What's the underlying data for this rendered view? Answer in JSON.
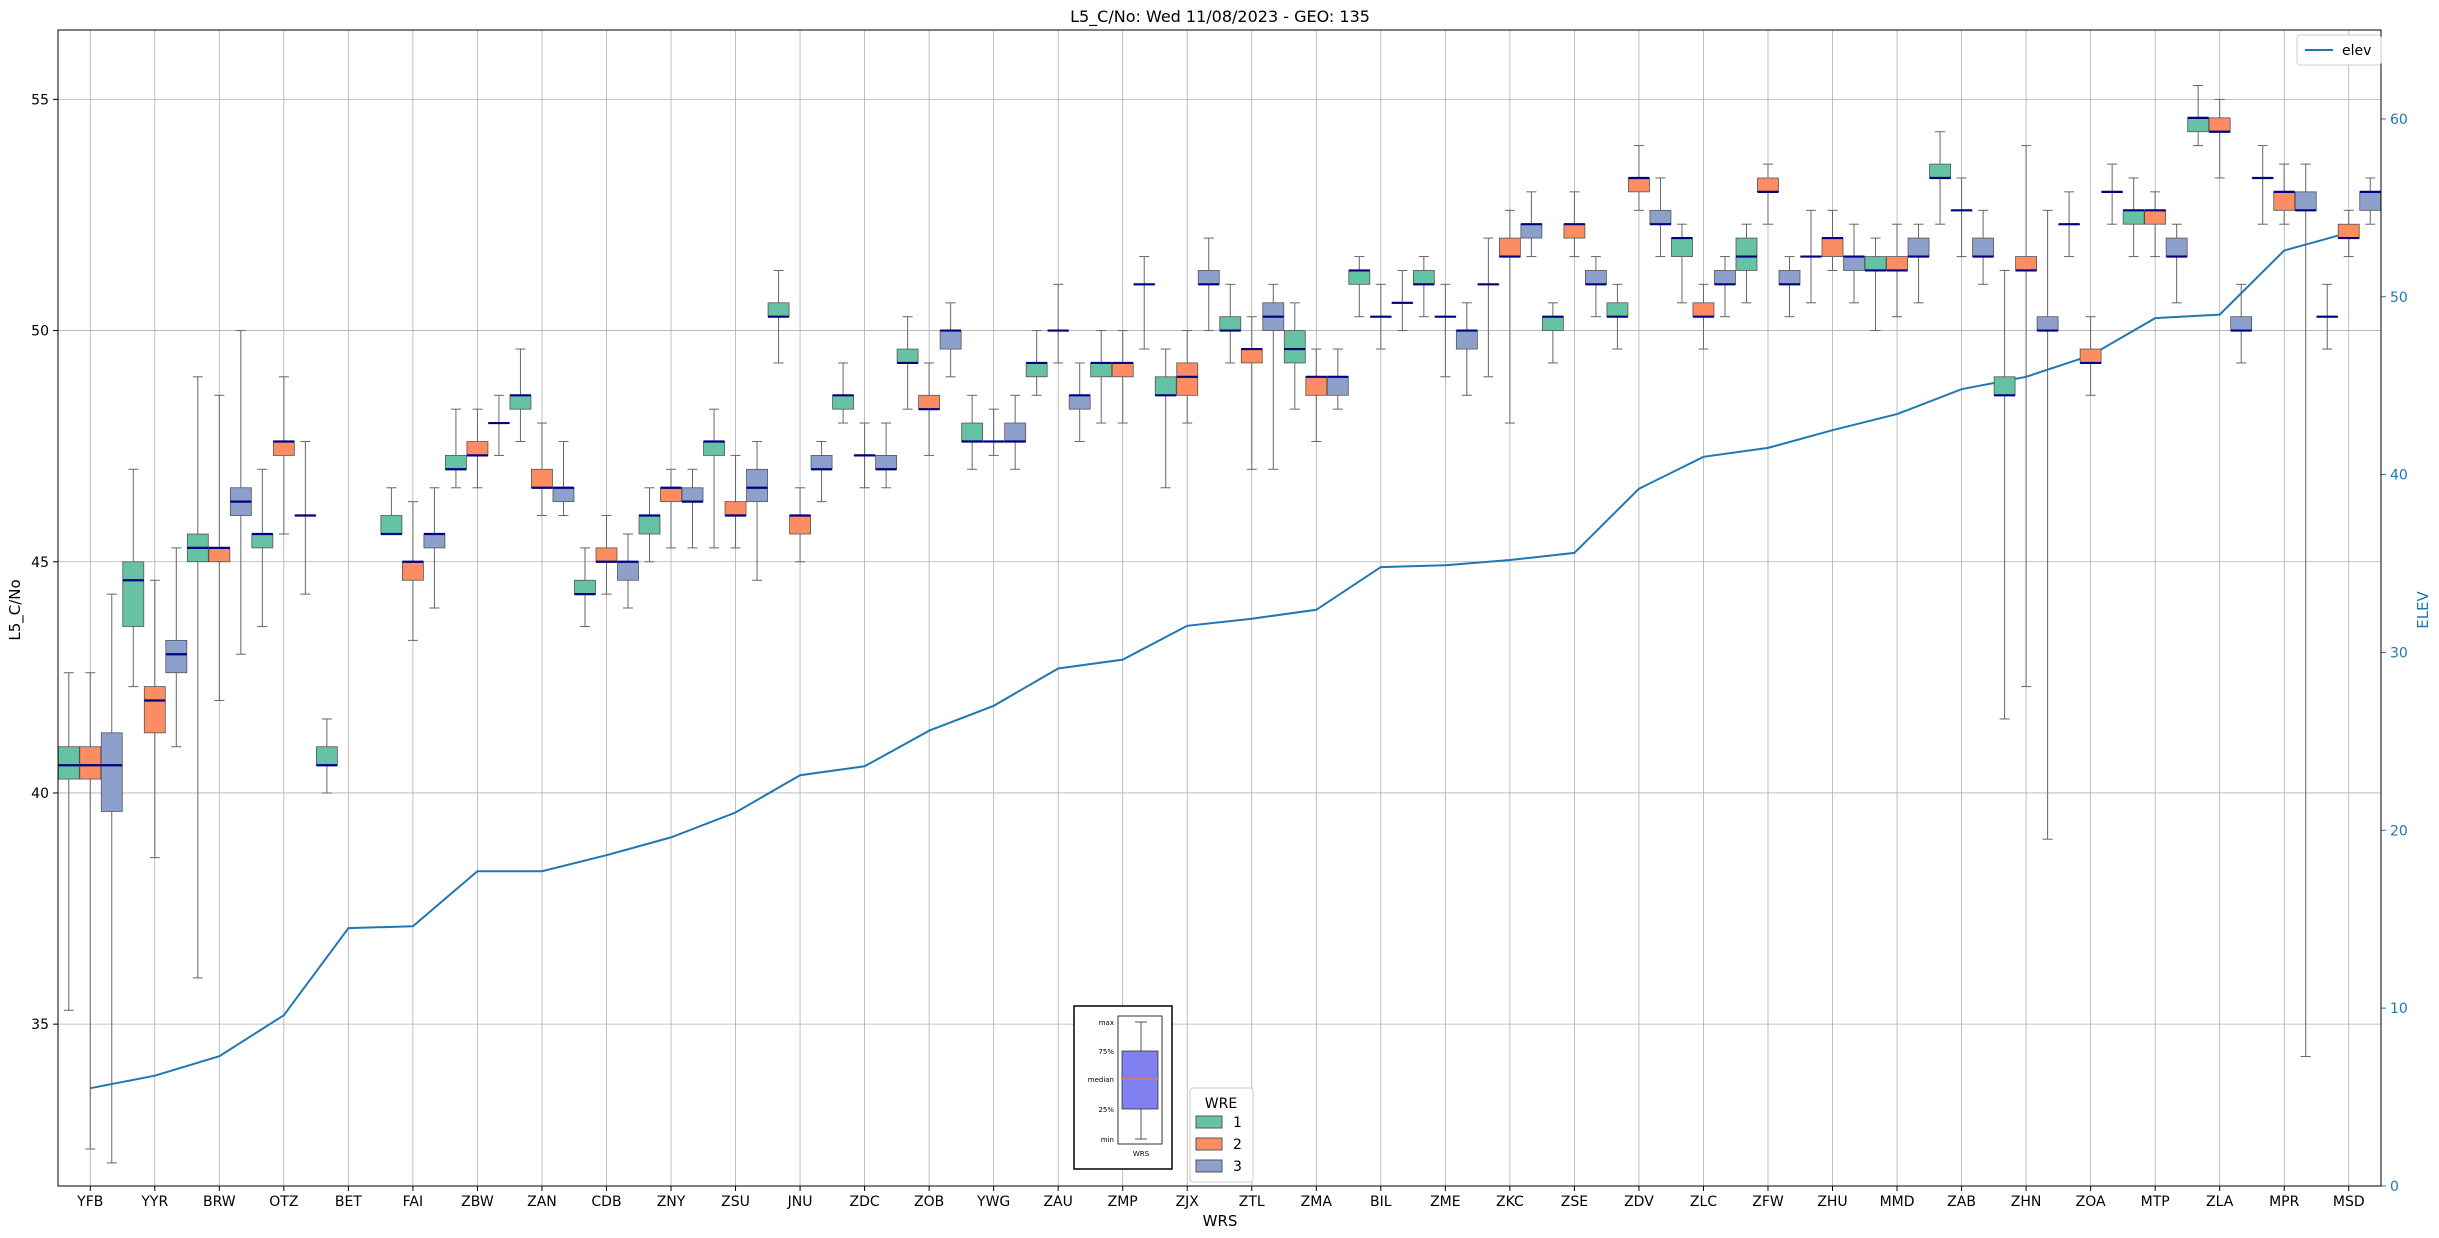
{
  "chart_data": {
    "type": "box",
    "title": "L5_C/No: Wed 11/08/2023 - GEO: 135",
    "xlabel": "WRS",
    "ylabel": "L5_C/No",
    "y2label": "ELEV",
    "ylim": [
      31.5,
      56.5
    ],
    "y2lim": [
      0,
      65
    ],
    "yticks": [
      35,
      40,
      45,
      50,
      55
    ],
    "y2ticks": [
      0,
      10,
      20,
      30,
      40,
      50,
      60
    ],
    "grid": true,
    "categories": [
      "YFB",
      "YYR",
      "BRW",
      "OTZ",
      "BET",
      "FAI",
      "ZBW",
      "ZAN",
      "CDB",
      "ZNY",
      "ZSU",
      "JNU",
      "ZDC",
      "ZOB",
      "YWG",
      "ZAU",
      "ZMP",
      "ZJX",
      "ZTL",
      "ZMA",
      "BIL",
      "ZME",
      "ZKC",
      "ZSE",
      "ZDV",
      "ZLC",
      "ZFW",
      "ZHU",
      "MMD",
      "ZAB",
      "ZHN",
      "ZOA",
      "MTP",
      "ZLA",
      "MPR",
      "MSD"
    ],
    "wre_legend": {
      "title": "WRE",
      "items": [
        {
          "label": "1",
          "color": "#66c2a5"
        },
        {
          "label": "2",
          "color": "#fc8d62"
        },
        {
          "label": "3",
          "color": "#8da0cb"
        }
      ]
    },
    "line_legend": "elev",
    "line_color": "#1f77b4",
    "median_color": "#000080",
    "elev": [
      5.5,
      6.2,
      7.3,
      9.6,
      14.5,
      14.6,
      17.7,
      17.7,
      18.6,
      19.6,
      21.0,
      23.1,
      23.6,
      25.6,
      27.0,
      29.1,
      29.6,
      31.5,
      31.9,
      32.4,
      34.8,
      34.9,
      35.2,
      35.6,
      39.2,
      41.0,
      41.5,
      42.5,
      43.4,
      44.8,
      45.5,
      46.7,
      48.8,
      49.0,
      52.6,
      53.6
    ],
    "boxes": [
      [
        {
          "wre": 1,
          "min": 35.3,
          "q1": 40.3,
          "med": 40.6,
          "q3": 41.0,
          "max": 42.6
        },
        {
          "wre": 2,
          "min": 32.3,
          "q1": 40.3,
          "med": 40.6,
          "q3": 41.0,
          "max": 42.6
        },
        {
          "wre": 3,
          "min": 32.0,
          "q1": 39.6,
          "med": 40.6,
          "q3": 41.3,
          "max": 44.3
        }
      ],
      [
        {
          "wre": 1,
          "min": 42.3,
          "q1": 43.6,
          "med": 44.6,
          "q3": 45.0,
          "max": 47.0
        },
        {
          "wre": 2,
          "min": 38.6,
          "q1": 41.3,
          "med": 42.0,
          "q3": 42.3,
          "max": 44.6
        },
        {
          "wre": 3,
          "min": 41.0,
          "q1": 42.6,
          "med": 43.0,
          "q3": 43.3,
          "max": 45.3
        }
      ],
      [
        {
          "wre": 1,
          "min": 36.0,
          "q1": 45.0,
          "med": 45.3,
          "q3": 45.6,
          "max": 49.0
        },
        {
          "wre": 2,
          "min": 42.0,
          "q1": 45.0,
          "med": 45.3,
          "q3": 45.3,
          "max": 48.6
        },
        {
          "wre": 3,
          "min": 43.0,
          "q1": 46.0,
          "med": 46.3,
          "q3": 46.6,
          "max": 50.0
        }
      ],
      [
        {
          "wre": 1,
          "min": 43.6,
          "q1": 45.3,
          "med": 45.6,
          "q3": 45.6,
          "max": 47.0
        },
        {
          "wre": 2,
          "min": 45.6,
          "q1": 47.3,
          "med": 47.6,
          "q3": 47.6,
          "max": 49.0
        },
        {
          "wre": 3,
          "min": 44.3,
          "q1": 46.0,
          "med": 46.0,
          "q3": 46.0,
          "max": 47.6
        }
      ],
      [
        {
          "wre": 1,
          "min": 40.0,
          "q1": 40.6,
          "med": 40.6,
          "q3": 41.0,
          "max": 41.6
        }
      ],
      [
        {
          "wre": 1,
          "min": 45.6,
          "q1": 45.6,
          "med": 45.6,
          "q3": 46.0,
          "max": 46.6
        },
        {
          "wre": 2,
          "min": 43.3,
          "q1": 44.6,
          "med": 45.0,
          "q3": 45.0,
          "max": 46.3
        },
        {
          "wre": 3,
          "min": 44.0,
          "q1": 45.3,
          "med": 45.6,
          "q3": 45.6,
          "max": 46.6
        }
      ],
      [
        {
          "wre": 1,
          "min": 46.6,
          "q1": 47.0,
          "med": 47.0,
          "q3": 47.3,
          "max": 48.3
        },
        {
          "wre": 2,
          "min": 46.6,
          "q1": 47.3,
          "med": 47.3,
          "q3": 47.6,
          "max": 48.3
        },
        {
          "wre": 3,
          "min": 47.3,
          "q1": 48.0,
          "med": 48.0,
          "q3": 48.0,
          "max": 48.6
        }
      ],
      [
        {
          "wre": 1,
          "min": 47.6,
          "q1": 48.3,
          "med": 48.6,
          "q3": 48.6,
          "max": 49.6
        },
        {
          "wre": 2,
          "min": 46.0,
          "q1": 46.6,
          "med": 46.6,
          "q3": 47.0,
          "max": 48.0
        },
        {
          "wre": 3,
          "min": 46.0,
          "q1": 46.3,
          "med": 46.6,
          "q3": 46.6,
          "max": 47.6
        }
      ],
      [
        {
          "wre": 1,
          "min": 43.6,
          "q1": 44.3,
          "med": 44.3,
          "q3": 44.6,
          "max": 45.3
        },
        {
          "wre": 2,
          "min": 44.3,
          "q1": 45.0,
          "med": 45.0,
          "q3": 45.3,
          "max": 46.0
        },
        {
          "wre": 3,
          "min": 44.0,
          "q1": 44.6,
          "med": 45.0,
          "q3": 45.0,
          "max": 45.6
        }
      ],
      [
        {
          "wre": 1,
          "min": 45.0,
          "q1": 45.6,
          "med": 46.0,
          "q3": 46.0,
          "max": 46.6
        },
        {
          "wre": 2,
          "min": 45.3,
          "q1": 46.3,
          "med": 46.6,
          "q3": 46.6,
          "max": 47.0
        },
        {
          "wre": 3,
          "min": 45.3,
          "q1": 46.3,
          "med": 46.3,
          "q3": 46.6,
          "max": 47.0
        }
      ],
      [
        {
          "wre": 1,
          "min": 45.3,
          "q1": 47.3,
          "med": 47.6,
          "q3": 47.6,
          "max": 48.3
        },
        {
          "wre": 2,
          "min": 45.3,
          "q1": 46.0,
          "med": 46.0,
          "q3": 46.3,
          "max": 47.3
        },
        {
          "wre": 3,
          "min": 44.6,
          "q1": 46.3,
          "med": 46.6,
          "q3": 47.0,
          "max": 47.6
        }
      ],
      [
        {
          "wre": 1,
          "min": 49.3,
          "q1": 50.3,
          "med": 50.3,
          "q3": 50.6,
          "max": 51.3
        },
        {
          "wre": 2,
          "min": 45.0,
          "q1": 45.6,
          "med": 46.0,
          "q3": 46.0,
          "max": 46.6
        },
        {
          "wre": 3,
          "min": 46.3,
          "q1": 47.0,
          "med": 47.0,
          "q3": 47.3,
          "max": 47.6
        }
      ],
      [
        {
          "wre": 1,
          "min": 48.0,
          "q1": 48.3,
          "med": 48.6,
          "q3": 48.6,
          "max": 49.3
        },
        {
          "wre": 2,
          "min": 46.6,
          "q1": 47.3,
          "med": 47.3,
          "q3": 47.3,
          "max": 48.0
        },
        {
          "wre": 3,
          "min": 46.6,
          "q1": 47.0,
          "med": 47.0,
          "q3": 47.3,
          "max": 48.0
        }
      ],
      [
        {
          "wre": 1,
          "min": 48.3,
          "q1": 49.3,
          "med": 49.3,
          "q3": 49.6,
          "max": 50.3
        },
        {
          "wre": 2,
          "min": 47.3,
          "q1": 48.3,
          "med": 48.3,
          "q3": 48.6,
          "max": 49.3
        },
        {
          "wre": 3,
          "min": 49.0,
          "q1": 49.6,
          "med": 50.0,
          "q3": 50.0,
          "max": 50.6
        }
      ],
      [
        {
          "wre": 1,
          "min": 47.0,
          "q1": 47.6,
          "med": 47.6,
          "q3": 48.0,
          "max": 48.6
        },
        {
          "wre": 2,
          "min": 47.3,
          "q1": 47.6,
          "med": 47.6,
          "q3": 47.6,
          "max": 48.3
        },
        {
          "wre": 3,
          "min": 47.0,
          "q1": 47.6,
          "med": 47.6,
          "q3": 48.0,
          "max": 48.6
        }
      ],
      [
        {
          "wre": 1,
          "min": 48.6,
          "q1": 49.0,
          "med": 49.3,
          "q3": 49.3,
          "max": 50.0
        },
        {
          "wre": 2,
          "min": 49.3,
          "q1": 50.0,
          "med": 50.0,
          "q3": 50.0,
          "max": 51.0
        },
        {
          "wre": 3,
          "min": 47.6,
          "q1": 48.3,
          "med": 48.6,
          "q3": 48.6,
          "max": 49.3
        }
      ],
      [
        {
          "wre": 1,
          "min": 48.0,
          "q1": 49.0,
          "med": 49.3,
          "q3": 49.3,
          "max": 50.0
        },
        {
          "wre": 2,
          "min": 48.0,
          "q1": 49.0,
          "med": 49.3,
          "q3": 49.3,
          "max": 50.0
        },
        {
          "wre": 3,
          "min": 49.6,
          "q1": 51.0,
          "med": 51.0,
          "q3": 51.0,
          "max": 51.6
        }
      ],
      [
        {
          "wre": 1,
          "min": 46.6,
          "q1": 48.6,
          "med": 48.6,
          "q3": 49.0,
          "max": 49.6
        },
        {
          "wre": 2,
          "min": 48.0,
          "q1": 48.6,
          "med": 49.0,
          "q3": 49.3,
          "max": 50.0
        },
        {
          "wre": 3,
          "min": 50.0,
          "q1": 51.0,
          "med": 51.0,
          "q3": 51.3,
          "max": 52.0
        }
      ],
      [
        {
          "wre": 1,
          "min": 49.3,
          "q1": 50.0,
          "med": 50.0,
          "q3": 50.3,
          "max": 51.0
        },
        {
          "wre": 2,
          "min": 47.0,
          "q1": 49.3,
          "med": 49.6,
          "q3": 49.6,
          "max": 50.3
        },
        {
          "wre": 3,
          "min": 47.0,
          "q1": 50.0,
          "med": 50.3,
          "q3": 50.6,
          "max": 51.0
        }
      ],
      [
        {
          "wre": 1,
          "min": 48.3,
          "q1": 49.3,
          "med": 49.6,
          "q3": 50.0,
          "max": 50.6
        },
        {
          "wre": 2,
          "min": 47.6,
          "q1": 48.6,
          "med": 49.0,
          "q3": 49.0,
          "max": 49.6
        },
        {
          "wre": 3,
          "min": 48.3,
          "q1": 48.6,
          "med": 49.0,
          "q3": 49.0,
          "max": 49.6
        }
      ],
      [
        {
          "wre": 1,
          "min": 50.3,
          "q1": 51.0,
          "med": 51.3,
          "q3": 51.3,
          "max": 51.6
        },
        {
          "wre": 2,
          "min": 49.6,
          "q1": 50.3,
          "med": 50.3,
          "q3": 50.3,
          "max": 51.0
        },
        {
          "wre": 3,
          "min": 50.0,
          "q1": 50.6,
          "med": 50.6,
          "q3": 50.6,
          "max": 51.3
        }
      ],
      [
        {
          "wre": 1,
          "min": 50.3,
          "q1": 51.0,
          "med": 51.0,
          "q3": 51.3,
          "max": 51.6
        },
        {
          "wre": 2,
          "min": 49.0,
          "q1": 50.3,
          "med": 50.3,
          "q3": 50.3,
          "max": 51.0
        },
        {
          "wre": 3,
          "min": 48.6,
          "q1": 49.6,
          "med": 50.0,
          "q3": 50.0,
          "max": 50.6
        }
      ],
      [
        {
          "wre": 1,
          "min": 49.0,
          "q1": 51.0,
          "med": 51.0,
          "q3": 51.0,
          "max": 52.0
        },
        {
          "wre": 2,
          "min": 48.0,
          "q1": 51.6,
          "med": 51.6,
          "q3": 52.0,
          "max": 52.6
        },
        {
          "wre": 3,
          "min": 51.6,
          "q1": 52.0,
          "med": 52.3,
          "q3": 52.3,
          "max": 53.0
        }
      ],
      [
        {
          "wre": 1,
          "min": 49.3,
          "q1": 50.0,
          "med": 50.3,
          "q3": 50.3,
          "max": 50.6
        },
        {
          "wre": 2,
          "min": 51.6,
          "q1": 52.0,
          "med": 52.3,
          "q3": 52.3,
          "max": 53.0
        },
        {
          "wre": 3,
          "min": 50.3,
          "q1": 51.0,
          "med": 51.0,
          "q3": 51.3,
          "max": 51.6
        }
      ],
      [
        {
          "wre": 1,
          "min": 49.6,
          "q1": 50.3,
          "med": 50.3,
          "q3": 50.6,
          "max": 51.0
        },
        {
          "wre": 2,
          "min": 52.6,
          "q1": 53.0,
          "med": 53.3,
          "q3": 53.3,
          "max": 54.0
        },
        {
          "wre": 3,
          "min": 51.6,
          "q1": 52.3,
          "med": 52.3,
          "q3": 52.6,
          "max": 53.3
        }
      ],
      [
        {
          "wre": 1,
          "min": 50.6,
          "q1": 51.6,
          "med": 52.0,
          "q3": 52.0,
          "max": 52.3
        },
        {
          "wre": 2,
          "min": 49.6,
          "q1": 50.3,
          "med": 50.3,
          "q3": 50.6,
          "max": 51.0
        },
        {
          "wre": 3,
          "min": 50.3,
          "q1": 51.0,
          "med": 51.0,
          "q3": 51.3,
          "max": 51.6
        }
      ],
      [
        {
          "wre": 1,
          "min": 50.6,
          "q1": 51.3,
          "med": 51.6,
          "q3": 52.0,
          "max": 52.3
        },
        {
          "wre": 2,
          "min": 52.3,
          "q1": 53.0,
          "med": 53.0,
          "q3": 53.3,
          "max": 53.6
        },
        {
          "wre": 3,
          "min": 50.3,
          "q1": 51.0,
          "med": 51.0,
          "q3": 51.3,
          "max": 51.6
        }
      ],
      [
        {
          "wre": 1,
          "min": 50.6,
          "q1": 51.6,
          "med": 51.6,
          "q3": 51.6,
          "max": 52.6
        },
        {
          "wre": 2,
          "min": 51.3,
          "q1": 51.6,
          "med": 52.0,
          "q3": 52.0,
          "max": 52.6
        },
        {
          "wre": 3,
          "min": 50.6,
          "q1": 51.3,
          "med": 51.6,
          "q3": 51.6,
          "max": 52.3
        }
      ],
      [
        {
          "wre": 1,
          "min": 50.0,
          "q1": 51.3,
          "med": 51.3,
          "q3": 51.6,
          "max": 52.0
        },
        {
          "wre": 2,
          "min": 50.3,
          "q1": 51.3,
          "med": 51.3,
          "q3": 51.6,
          "max": 52.3
        },
        {
          "wre": 3,
          "min": 50.6,
          "q1": 51.6,
          "med": 51.6,
          "q3": 52.0,
          "max": 52.3
        }
      ],
      [
        {
          "wre": 1,
          "min": 52.3,
          "q1": 53.3,
          "med": 53.3,
          "q3": 53.6,
          "max": 54.3
        },
        {
          "wre": 2,
          "min": 51.6,
          "q1": 52.6,
          "med": 52.6,
          "q3": 52.6,
          "max": 53.3
        },
        {
          "wre": 3,
          "min": 51.0,
          "q1": 51.6,
          "med": 51.6,
          "q3": 52.0,
          "max": 52.6
        }
      ],
      [
        {
          "wre": 1,
          "min": 41.6,
          "q1": 48.6,
          "med": 48.6,
          "q3": 49.0,
          "max": 51.3
        },
        {
          "wre": 2,
          "min": 42.3,
          "q1": 51.3,
          "med": 51.3,
          "q3": 51.6,
          "max": 54.0
        },
        {
          "wre": 3,
          "min": 39.0,
          "q1": 50.0,
          "med": 50.0,
          "q3": 50.3,
          "max": 52.6
        }
      ],
      [
        {
          "wre": 1,
          "min": 51.6,
          "q1": 52.3,
          "med": 52.3,
          "q3": 52.3,
          "max": 53.0
        },
        {
          "wre": 2,
          "min": 48.6,
          "q1": 49.3,
          "med": 49.3,
          "q3": 49.6,
          "max": 50.3
        },
        {
          "wre": 3,
          "min": 52.3,
          "q1": 53.0,
          "med": 53.0,
          "q3": 53.0,
          "max": 53.6
        }
      ],
      [
        {
          "wre": 1,
          "min": 51.6,
          "q1": 52.3,
          "med": 52.6,
          "q3": 52.6,
          "max": 53.3
        },
        {
          "wre": 2,
          "min": 51.6,
          "q1": 52.3,
          "med": 52.6,
          "q3": 52.6,
          "max": 53.0
        },
        {
          "wre": 3,
          "min": 50.6,
          "q1": 51.6,
          "med": 51.6,
          "q3": 52.0,
          "max": 52.3
        }
      ],
      [
        {
          "wre": 1,
          "min": 54.0,
          "q1": 54.3,
          "med": 54.6,
          "q3": 54.6,
          "max": 55.3
        },
        {
          "wre": 2,
          "min": 53.3,
          "q1": 54.3,
          "med": 54.3,
          "q3": 54.6,
          "max": 55.0
        },
        {
          "wre": 3,
          "min": 49.3,
          "q1": 50.0,
          "med": 50.0,
          "q3": 50.3,
          "max": 51.0
        }
      ],
      [
        {
          "wre": 1,
          "min": 52.3,
          "q1": 53.3,
          "med": 53.3,
          "q3": 53.3,
          "max": 54.0
        },
        {
          "wre": 2,
          "min": 52.3,
          "q1": 52.6,
          "med": 53.0,
          "q3": 53.0,
          "max": 53.6
        },
        {
          "wre": 3,
          "min": 34.3,
          "q1": 52.6,
          "med": 52.6,
          "q3": 53.0,
          "max": 53.6
        }
      ],
      [
        {
          "wre": 1,
          "min": 49.6,
          "q1": 50.3,
          "med": 50.3,
          "q3": 50.3,
          "max": 51.0
        },
        {
          "wre": 2,
          "min": 51.6,
          "q1": 52.0,
          "med": 52.0,
          "q3": 52.3,
          "max": 52.6
        },
        {
          "wre": 3,
          "min": 52.3,
          "q1": 52.6,
          "med": 53.0,
          "q3": 53.0,
          "max": 53.3
        }
      ]
    ],
    "inset_legend": {
      "labels": [
        "max",
        "75%",
        "median",
        "25%",
        "min"
      ],
      "xlabel": "WRS",
      "box_color": "#8080f0"
    }
  }
}
